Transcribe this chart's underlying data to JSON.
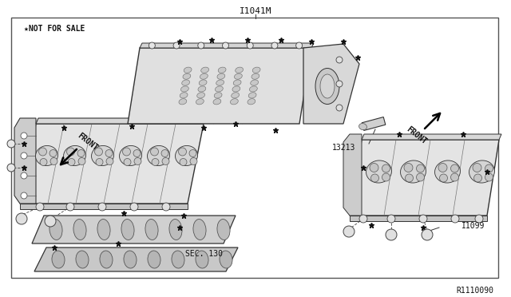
{
  "title_above": "I1041M",
  "watermark": "★NOT FOR SALE",
  "sec130_label": "SEC. 130",
  "label_13213": "13213",
  "label_11099": "I1099",
  "ref_id": "R1110090",
  "bg_color": "#ffffff",
  "border_color": "#555555",
  "line_color": "#333333",
  "fill_light": "#e8e8e8",
  "fill_mid": "#d0d0d0",
  "fill_dark": "#b8b8b8"
}
